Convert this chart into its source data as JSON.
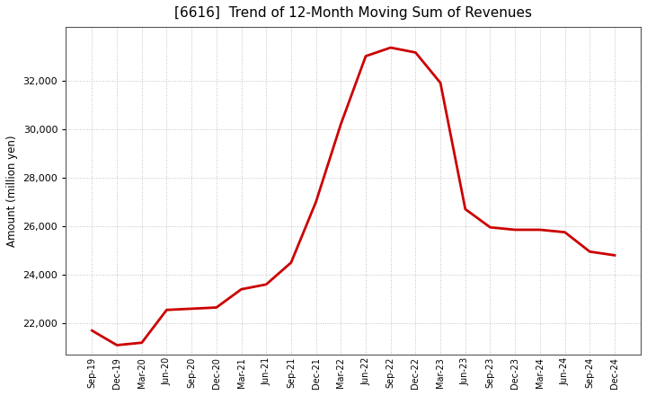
{
  "title": "[6616]  Trend of 12-Month Moving Sum of Revenues",
  "ylabel": "Amount (million yen)",
  "line_color": "#cc0000",
  "background_color": "#ffffff",
  "plot_bg_color": "#ffffff",
  "grid_color": "#999999",
  "x_labels": [
    "Sep-19",
    "Dec-19",
    "Mar-20",
    "Jun-20",
    "Sep-20",
    "Dec-20",
    "Mar-21",
    "Jun-21",
    "Sep-21",
    "Dec-21",
    "Mar-22",
    "Jun-22",
    "Sep-22",
    "Dec-22",
    "Mar-23",
    "Jun-23",
    "Sep-23",
    "Dec-23",
    "Mar-24",
    "Jun-24",
    "Sep-24",
    "Dec-24"
  ],
  "y_values": [
    21700,
    21100,
    21200,
    22550,
    22600,
    22650,
    23400,
    23600,
    24500,
    27000,
    30200,
    33000,
    33350,
    33150,
    31900,
    26700,
    25950,
    25850,
    25850,
    25750,
    24950,
    24800
  ],
  "ylim_min": 20700,
  "ylim_max": 34200,
  "yticks": [
    22000,
    24000,
    26000,
    28000,
    30000,
    32000
  ],
  "line_width": 2.0,
  "title_fontsize": 11,
  "ylabel_fontsize": 8.5,
  "xtick_fontsize": 7.0,
  "ytick_fontsize": 8.0
}
